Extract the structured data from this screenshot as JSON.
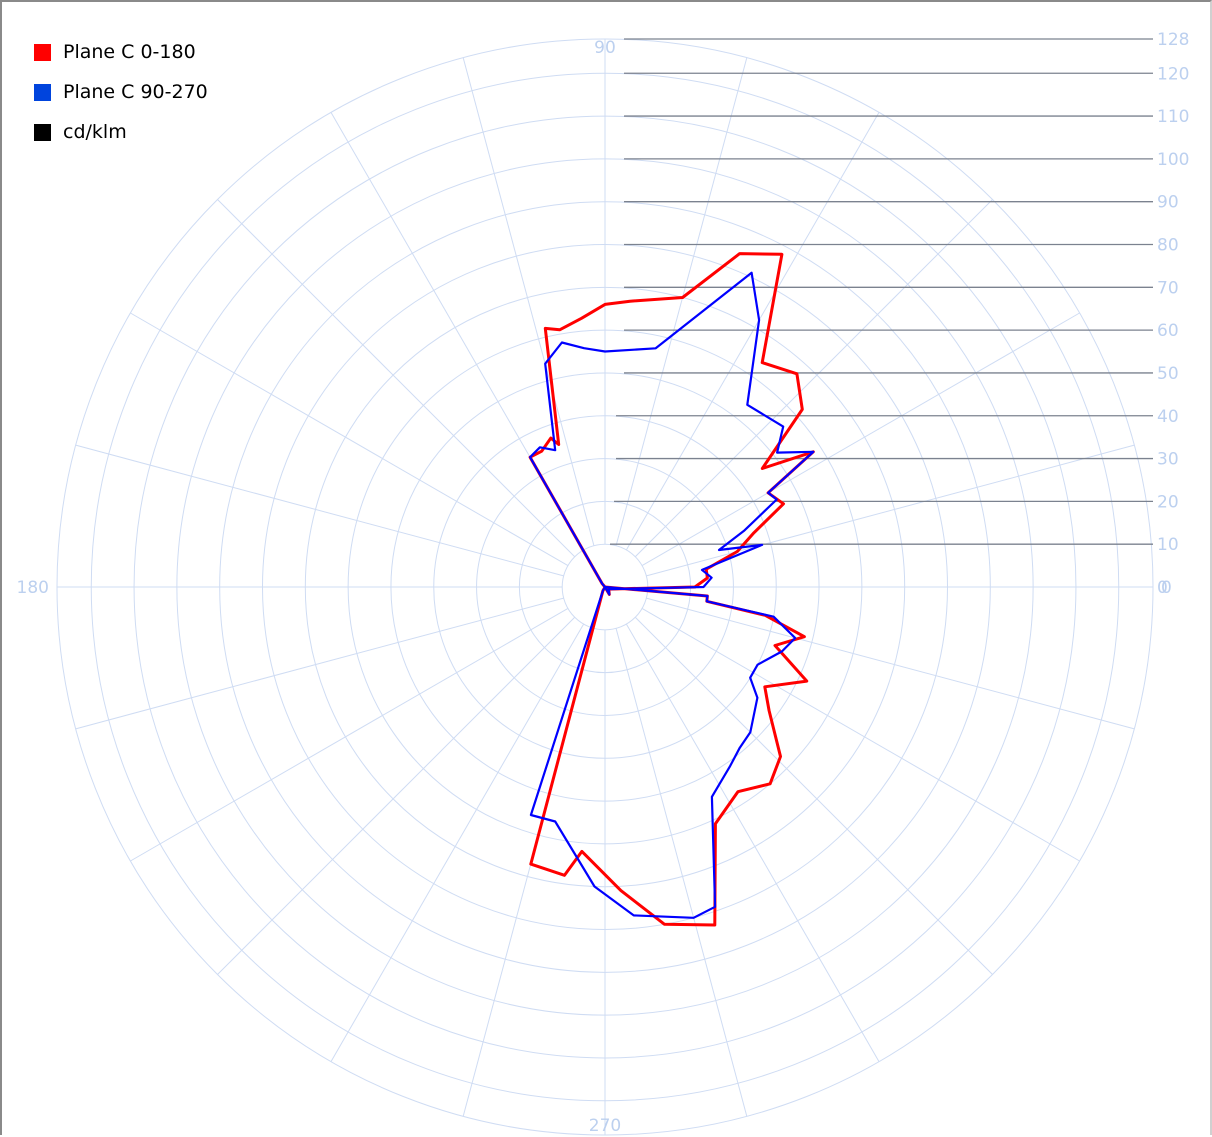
{
  "chart_data": {
    "type": "polar",
    "title": "",
    "unit_label": "cd/klm",
    "angle_labels": {
      "right": "0",
      "top": "90",
      "left": "180",
      "bottom": "270"
    },
    "radial_ticks": [
      0,
      10,
      20,
      30,
      40,
      50,
      60,
      70,
      80,
      90,
      100,
      110,
      120,
      128
    ],
    "rmax": 128,
    "angle_step_deg": 15,
    "grid": true,
    "legend_position": "top-left",
    "series": [
      {
        "name": "Plane C 0-180",
        "color": "#ff0000",
        "points": [
          [
            0,
            0
          ],
          [
            -90,
            0
          ],
          [
            -60,
            2
          ],
          [
            -30,
            1
          ],
          [
            0,
            21
          ],
          [
            5,
            24
          ],
          [
            10,
            24
          ],
          [
            15,
            32
          ],
          [
            20,
            37
          ],
          [
            25,
            46
          ],
          [
            30,
            44
          ],
          [
            33,
            58
          ],
          [
            37,
            46
          ],
          [
            42,
            62
          ],
          [
            48,
            67
          ],
          [
            55,
            64
          ],
          [
            62,
            88
          ],
          [
            68,
            84
          ],
          [
            75,
            70
          ],
          [
            85,
            67
          ],
          [
            90,
            66
          ],
          [
            95,
            63
          ],
          [
            100,
            61
          ],
          [
            103,
            62
          ],
          [
            108,
            35
          ],
          [
            110,
            37
          ],
          [
            115,
            35
          ],
          [
            120,
            35
          ],
          [
            130,
            1
          ],
          [
            180,
            0
          ],
          [
            240,
            1
          ],
          [
            255,
            67
          ],
          [
            262,
            68
          ],
          [
            265,
            62
          ],
          [
            273,
            71
          ],
          [
            280,
            80
          ],
          [
            288,
            83
          ],
          [
            295,
            61
          ],
          [
            303,
            57
          ],
          [
            310,
            60
          ],
          [
            316,
            57
          ],
          [
            323,
            48
          ],
          [
            328,
            44
          ],
          [
            335,
            52
          ],
          [
            341,
            42
          ],
          [
            346,
            48
          ],
          [
            350,
            38
          ],
          [
            352,
            24
          ],
          [
            355,
            24
          ]
        ]
      },
      {
        "name": "Plane C 90-270",
        "color": "#0000ff",
        "points": [
          [
            0,
            0
          ],
          [
            -90,
            0
          ],
          [
            -60,
            2
          ],
          [
            -30,
            1
          ],
          [
            0,
            23
          ],
          [
            5,
            25
          ],
          [
            10,
            23
          ],
          [
            15,
            38
          ],
          [
            18,
            28
          ],
          [
            22,
            35
          ],
          [
            27,
            45
          ],
          [
            30,
            44
          ],
          [
            33,
            58
          ],
          [
            38,
            51
          ],
          [
            42,
            56
          ],
          [
            52,
            54
          ],
          [
            60,
            72
          ],
          [
            65,
            81
          ],
          [
            78,
            57
          ],
          [
            90,
            55
          ],
          [
            95,
            56
          ],
          [
            100,
            58
          ],
          [
            105,
            54
          ],
          [
            110,
            34
          ],
          [
            115,
            36
          ],
          [
            120,
            35
          ],
          [
            130,
            1
          ],
          [
            180,
            0
          ],
          [
            240,
            1
          ],
          [
            252,
            56
          ],
          [
            258,
            56
          ],
          [
            268,
            70
          ],
          [
            275,
            77
          ],
          [
            285,
            80
          ],
          [
            289,
            79
          ],
          [
            297,
            55
          ],
          [
            305,
            51
          ],
          [
            310,
            49
          ],
          [
            315,
            48
          ],
          [
            324,
            44
          ],
          [
            328,
            40
          ],
          [
            333,
            40
          ],
          [
            340,
            44
          ],
          [
            345,
            46
          ],
          [
            350,
            40
          ],
          [
            352,
            24
          ],
          [
            355,
            24
          ]
        ]
      }
    ]
  },
  "legend": {
    "items": [
      {
        "label": "Plane C 0-180",
        "color": "#ff0000"
      },
      {
        "label": "Plane C 90-270",
        "color": "#0000ff"
      },
      {
        "label": "cd/klm",
        "color": "#000000"
      }
    ]
  }
}
